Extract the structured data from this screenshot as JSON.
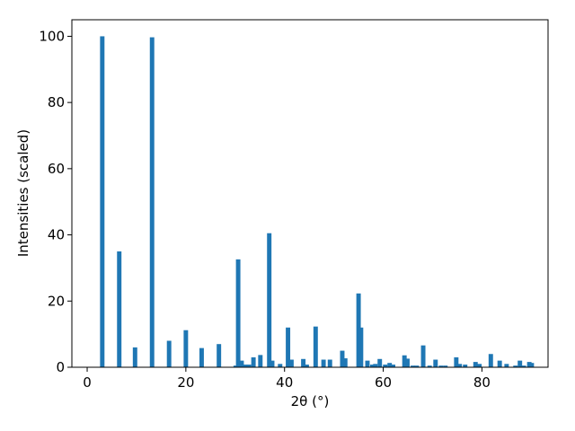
{
  "chart_data": {
    "type": "bar",
    "x_label": "2θ (°)",
    "y_label": "Intensities (scaled)",
    "color": "#1f77b4",
    "x": [
      3.06,
      6.5,
      9.7,
      13.15,
      16.6,
      20,
      23.2,
      26.7,
      30.1,
      30.6,
      31.3,
      32,
      32.8,
      33.7,
      35.1,
      36.9,
      37.5,
      39.1,
      40.7,
      41.4,
      43.8,
      44.5,
      46.3,
      47.9,
      49.2,
      51.7,
      52.3,
      55,
      55.5,
      56.8,
      57.8,
      58.4,
      59.3,
      60.4,
      61.3,
      62,
      64.3,
      64.9,
      66,
      66.8,
      68.1,
      69.4,
      70.6,
      71.7,
      72.6,
      74.8,
      75.5,
      76.6,
      78.7,
      79.5,
      81.8,
      83.6,
      85,
      86.8,
      87.7,
      88.5,
      89.6,
      90.1
    ],
    "values": [
      100,
      35,
      6,
      99.7,
      8,
      11.2,
      5.8,
      7,
      0.5,
      32.6,
      2,
      0.8,
      0.8,
      3,
      3.7,
      40.5,
      2,
      1,
      12,
      2.3,
      2.5,
      0.8,
      12.3,
      2.3,
      2.3,
      5,
      2.7,
      22.3,
      12,
      2,
      0.8,
      1,
      2.5,
      0.8,
      1.3,
      0.8,
      3.6,
      2.6,
      0.5,
      0.5,
      6.6,
      0.5,
      2.3,
      0.5,
      0.5,
      3,
      1,
      0.8,
      1.6,
      1,
      4,
      2,
      1,
      0.5,
      2,
      0.5,
      1.6,
      1.3
    ],
    "xlim": [
      -3.1,
      93.4
    ],
    "ylim": [
      0,
      105
    ],
    "xticks": [
      0,
      20,
      40,
      60,
      80
    ],
    "yticks": [
      0,
      20,
      40,
      60,
      80,
      100
    ]
  }
}
